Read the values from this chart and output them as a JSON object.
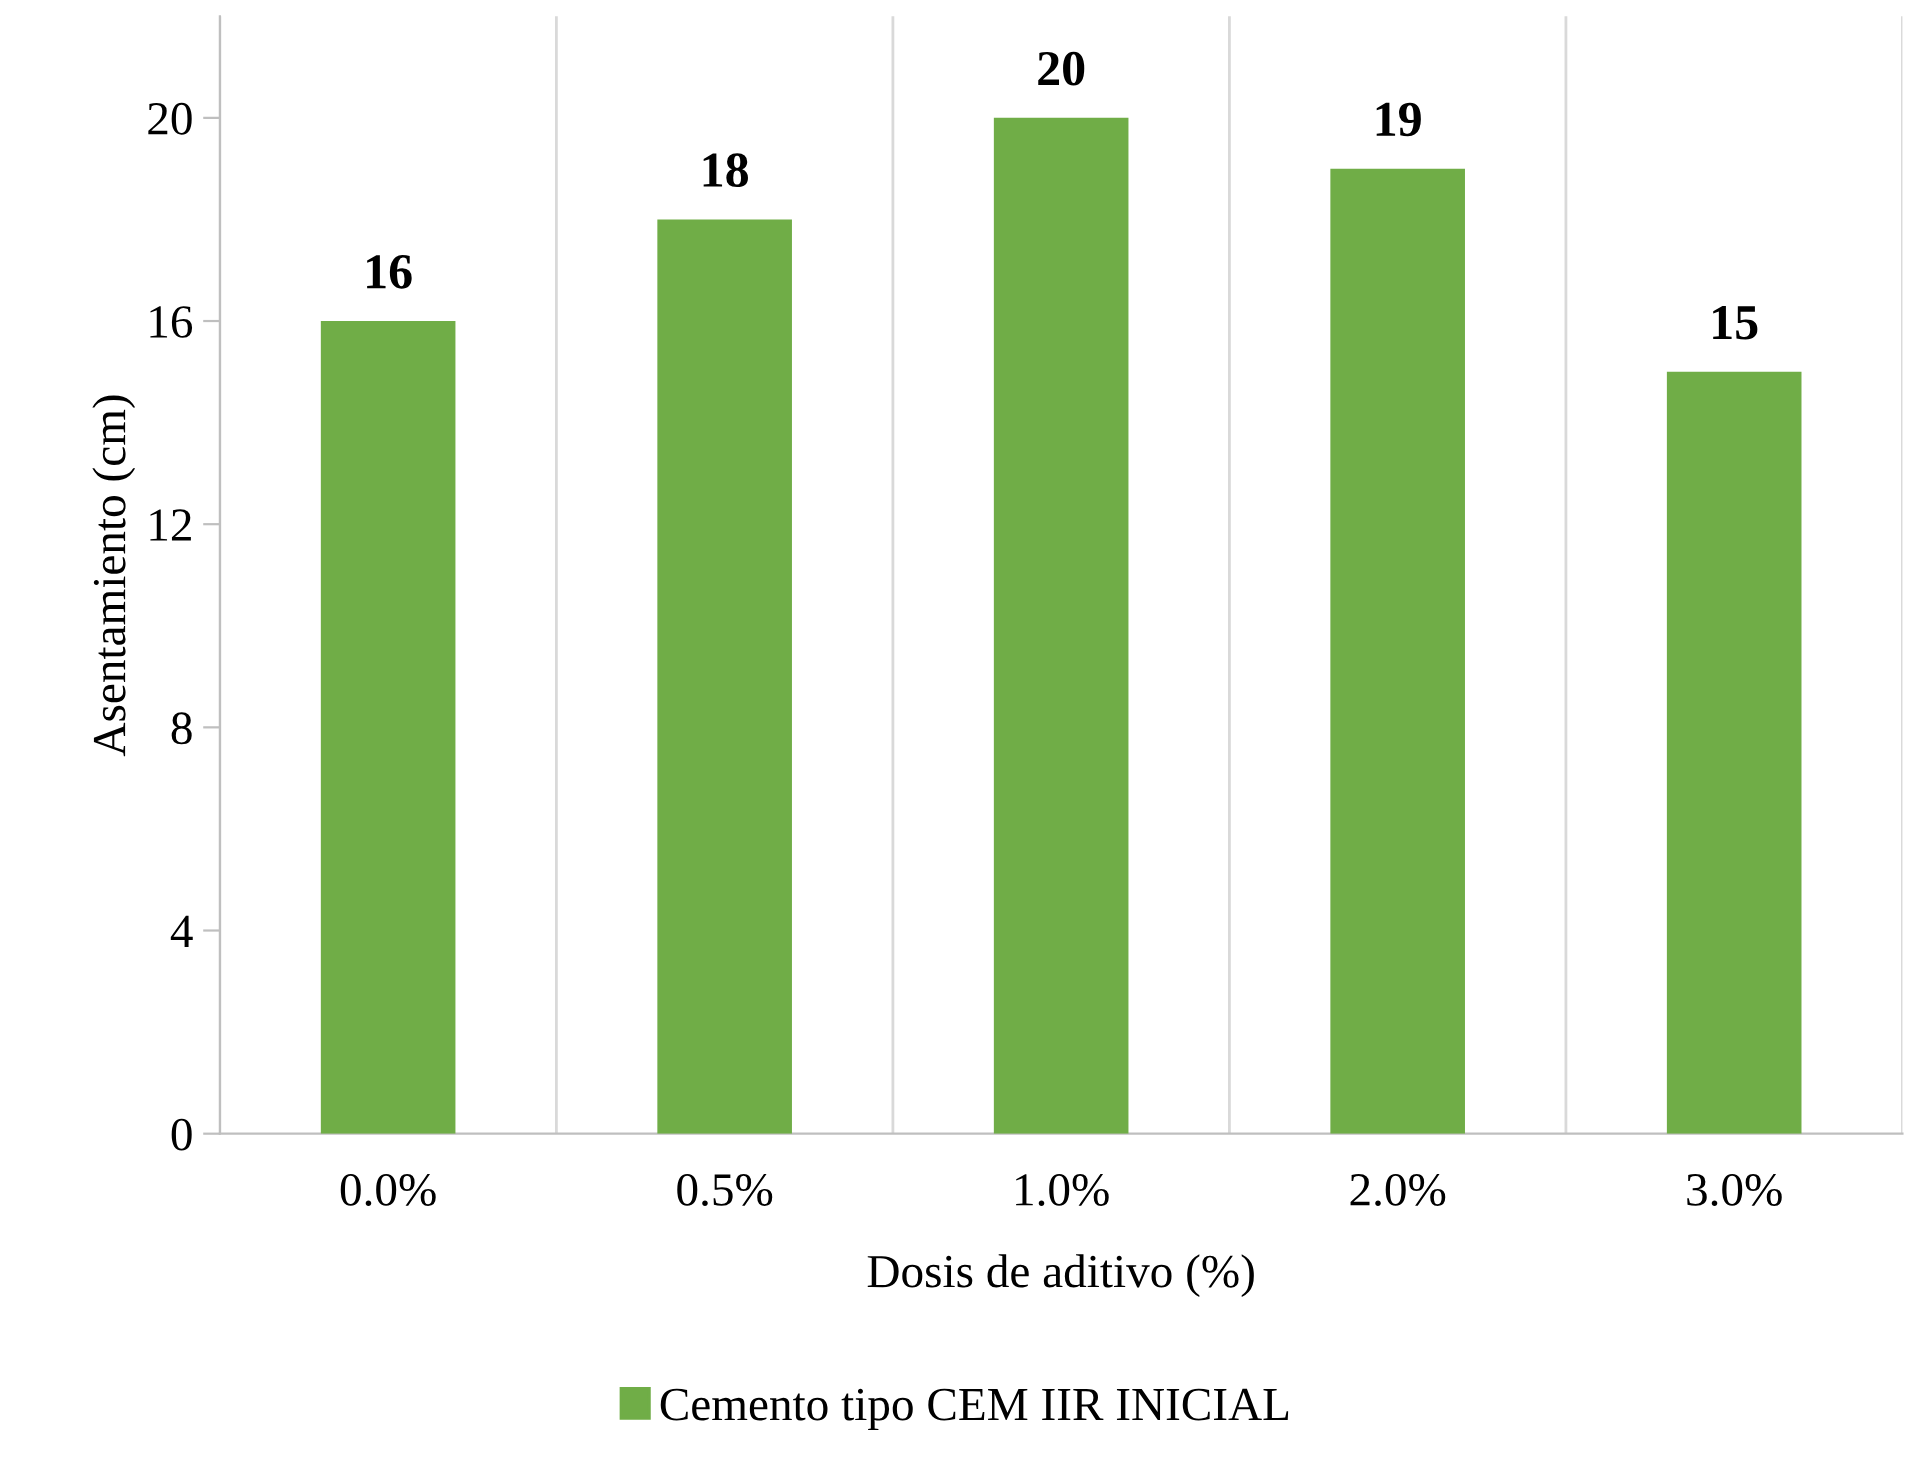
{
  "chart_data": {
    "type": "bar",
    "xlabel": "Dosis de aditivo (%)",
    "ylabel": "Asentamiento (cm)",
    "categories": [
      "0.0%",
      "0.5%",
      "1.0%",
      "2.0%",
      "3.0%"
    ],
    "series": [
      {
        "name": "Cemento tipo CEM IIR INICIAL",
        "color": "#70ad47",
        "values": [
          16,
          18,
          20,
          19,
          15
        ]
      }
    ],
    "ylim": [
      0,
      22
    ],
    "yticks": [
      0,
      4,
      8,
      12,
      16,
      20
    ],
    "grid": "x",
    "legend": "bottom",
    "data_labels": true
  }
}
